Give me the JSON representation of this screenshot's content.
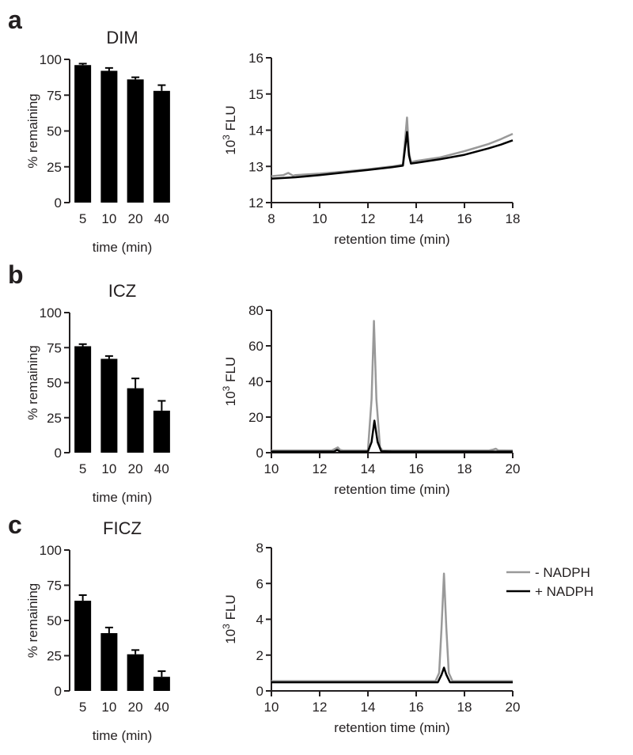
{
  "panels": [
    {
      "letter": "a"
    },
    {
      "letter": "b"
    },
    {
      "letter": "c"
    }
  ],
  "legend": {
    "entries": [
      {
        "label": "- NADPH",
        "color": "#999999"
      },
      {
        "label": "+ NADPH",
        "color": "#000000"
      }
    ]
  },
  "colors": {
    "bars": "#000000",
    "minus_nadph": "#999999",
    "plus_nadph": "#000000"
  },
  "chart_data": [
    {
      "type": "bar",
      "panel": "a",
      "title": "DIM",
      "xlabel": "time (min)",
      "ylabel": "% remaining",
      "categories": [
        "5",
        "10",
        "20",
        "40"
      ],
      "values": [
        96,
        92,
        86,
        78
      ],
      "errors": [
        1,
        2,
        1.5,
        4
      ],
      "ylim": [
        0,
        100
      ],
      "yticks": [
        0,
        25,
        50,
        75,
        100
      ]
    },
    {
      "type": "line",
      "panel": "a",
      "xlabel": "retention time (min)",
      "ylabel_main": "10",
      "ylabel_sup": "3",
      "ylabel_rest": " FLU",
      "xlim": [
        8,
        18
      ],
      "ylim": [
        12,
        16
      ],
      "xticks": [
        8,
        10,
        12,
        14,
        16,
        18
      ],
      "yticks": [
        12,
        13,
        14,
        15,
        16
      ],
      "series": [
        {
          "name": "- NADPH",
          "x": [
            8,
            8.5,
            8.7,
            8.9,
            9,
            10,
            11,
            12,
            13,
            13.45,
            13.62,
            13.7,
            13.78,
            14,
            15,
            16,
            16.5,
            17,
            17.5,
            18
          ],
          "y": [
            12.73,
            12.76,
            12.82,
            12.74,
            12.76,
            12.8,
            12.86,
            12.92,
            13.0,
            13.05,
            14.35,
            13.4,
            13.12,
            13.15,
            13.25,
            13.42,
            13.52,
            13.62,
            13.75,
            13.9
          ]
        },
        {
          "name": "+ NADPH",
          "x": [
            8,
            9,
            10,
            11,
            12,
            13,
            13.45,
            13.62,
            13.7,
            13.78,
            14,
            15,
            16,
            17,
            17.5,
            18
          ],
          "y": [
            12.66,
            12.7,
            12.76,
            12.83,
            12.9,
            12.98,
            13.02,
            13.95,
            13.3,
            13.08,
            13.1,
            13.2,
            13.32,
            13.5,
            13.6,
            13.72
          ]
        }
      ]
    },
    {
      "type": "bar",
      "panel": "b",
      "title": "ICZ",
      "xlabel": "time (min)",
      "ylabel": "% remaining",
      "categories": [
        "5",
        "10",
        "20",
        "40"
      ],
      "values": [
        76,
        67,
        46,
        30
      ],
      "errors": [
        1.5,
        2,
        7,
        7
      ],
      "ylim": [
        0,
        100
      ],
      "yticks": [
        0,
        25,
        50,
        75,
        100
      ]
    },
    {
      "type": "line",
      "panel": "b",
      "xlabel": "retention time (min)",
      "ylabel_main": "10",
      "ylabel_sup": "3",
      "ylabel_rest": " FLU",
      "xlim": [
        10,
        20
      ],
      "ylim": [
        0,
        80
      ],
      "xticks": [
        10,
        12,
        14,
        16,
        18,
        20
      ],
      "yticks": [
        0,
        20,
        40,
        60,
        80
      ],
      "series": [
        {
          "name": "- NADPH",
          "x": [
            10,
            12.5,
            12.65,
            12.75,
            12.85,
            13,
            14,
            14.15,
            14.25,
            14.35,
            14.5,
            14.6,
            15,
            19,
            19.2,
            19.3,
            19.4,
            20
          ],
          "y": [
            1.2,
            1.2,
            2.2,
            3,
            1.5,
            1.2,
            1.3,
            30,
            74,
            30,
            3,
            1.3,
            1.2,
            1.2,
            1.8,
            2.2,
            1.3,
            1.2
          ]
        },
        {
          "name": "+ NADPH",
          "x": [
            10,
            12.6,
            12.72,
            12.85,
            14,
            14.15,
            14.27,
            14.4,
            14.55,
            15,
            20
          ],
          "y": [
            0.6,
            0.6,
            1.6,
            0.6,
            0.6,
            6,
            18,
            6,
            0.8,
            0.6,
            0.6
          ]
        }
      ]
    },
    {
      "type": "bar",
      "panel": "c",
      "title": "FICZ",
      "xlabel": "time (min)",
      "ylabel": "% remaining",
      "categories": [
        "5",
        "10",
        "20",
        "40"
      ],
      "values": [
        64,
        41,
        26,
        10
      ],
      "errors": [
        4,
        4,
        3,
        4
      ],
      "ylim": [
        0,
        100
      ],
      "yticks": [
        0,
        25,
        50,
        75,
        100
      ]
    },
    {
      "type": "line",
      "panel": "c",
      "xlabel": "retention time (min)",
      "ylabel_main": "10",
      "ylabel_sup": "3",
      "ylabel_rest": " FLU",
      "xlim": [
        10,
        20
      ],
      "ylim": [
        0,
        8
      ],
      "xticks": [
        10,
        12,
        14,
        16,
        18,
        20
      ],
      "yticks": [
        0,
        2,
        4,
        6,
        8
      ],
      "series": [
        {
          "name": "- NADPH",
          "x": [
            10,
            16.8,
            16.95,
            17.05,
            17.15,
            17.25,
            17.35,
            17.5,
            20
          ],
          "y": [
            0.55,
            0.55,
            1.0,
            3.5,
            6.55,
            3.5,
            1.0,
            0.55,
            0.55
          ]
        },
        {
          "name": "+ NADPH",
          "x": [
            10,
            16.9,
            17.05,
            17.15,
            17.25,
            17.4,
            20
          ],
          "y": [
            0.48,
            0.48,
            0.9,
            1.3,
            0.9,
            0.48,
            0.48
          ]
        }
      ]
    }
  ]
}
